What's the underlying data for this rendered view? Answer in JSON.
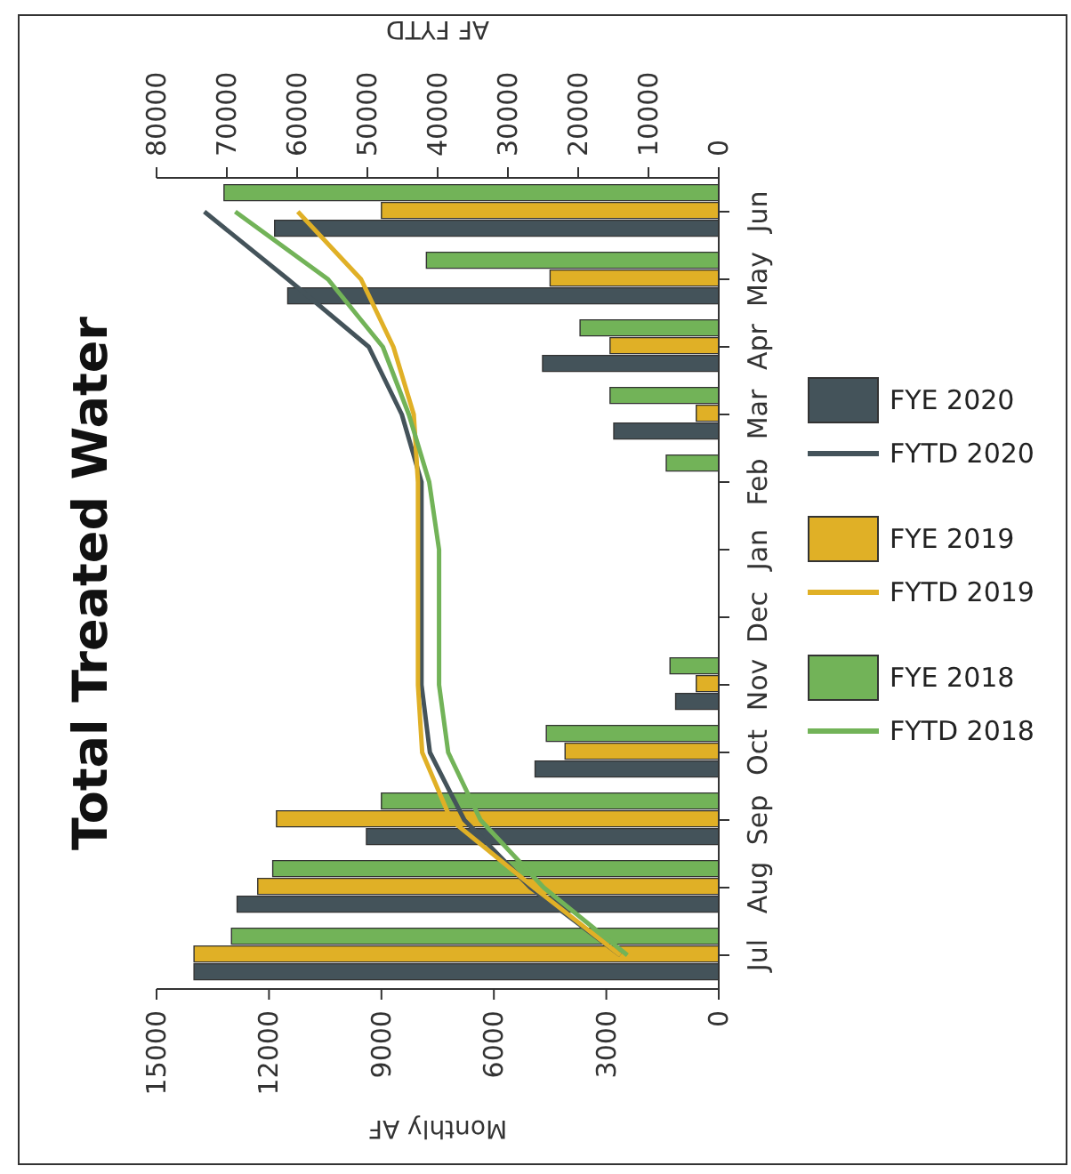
{
  "chart_data": {
    "type": "bar",
    "orientation": "horizontal",
    "title": "Total Treated Water",
    "xlabel": "Monthly AF",
    "x2label": "AF FYTD",
    "categories": [
      "Jun",
      "May",
      "Apr",
      "Mar",
      "Feb",
      "Jan",
      "Dec",
      "Nov",
      "Oct",
      "Sep",
      "Aug",
      "Jul"
    ],
    "series": [
      {
        "name": "FYE 2020",
        "color": "#44535a",
        "values": [
          11850,
          11500,
          4700,
          2800,
          null,
          null,
          null,
          1150,
          4900,
          9400,
          12850,
          14000
        ]
      },
      {
        "name": "FYE 2019",
        "color": "#e0b026",
        "values": [
          9000,
          4500,
          2900,
          600,
          null,
          null,
          null,
          600,
          4100,
          11800,
          12300,
          14000
        ]
      },
      {
        "name": "FYE 2018",
        "color": "#72b358",
        "values": [
          13200,
          7800,
          3700,
          2900,
          1400,
          null,
          null,
          1300,
          4600,
          9000,
          11900,
          13000
        ]
      },
      {
        "name": "FYTD 2020",
        "type": "line",
        "axis": "x2",
        "color": "#44535a",
        "values": [
          73200,
          61300,
          49800,
          45100,
          42300,
          42300,
          42300,
          42300,
          41100,
          36200,
          26800,
          14000
        ]
      },
      {
        "name": "FYTD 2019",
        "type": "line",
        "axis": "x2",
        "color": "#e0b026",
        "values": [
          59900,
          50900,
          46300,
          43400,
          42800,
          42800,
          42800,
          42800,
          42200,
          38100,
          26300,
          14000
        ]
      },
      {
        "name": "FYTD 2018",
        "type": "line",
        "axis": "x2",
        "color": "#72b358",
        "values": [
          68800,
          55600,
          47800,
          44100,
          41200,
          39800,
          39800,
          39800,
          38500,
          33900,
          24900,
          13000
        ]
      }
    ],
    "xlim": [
      15000,
      0
    ],
    "xticks": [
      0,
      3000,
      6000,
      9000,
      12000,
      15000
    ],
    "x2lim": [
      80000,
      0
    ],
    "x2ticks": [
      0,
      10000,
      20000,
      30000,
      40000,
      50000,
      60000,
      70000,
      80000
    ],
    "grid": false,
    "legend": "right",
    "marker": "none",
    "line_style": "solid"
  }
}
